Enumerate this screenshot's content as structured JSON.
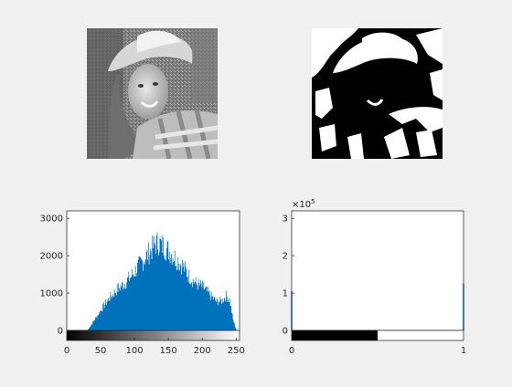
{
  "figure": {
    "background": "#f0f0f0",
    "subplots": [
      {
        "id": "grayscale-image",
        "kind": "image",
        "content": "grayscale portrait photo"
      },
      {
        "id": "binary-image",
        "kind": "image",
        "content": "binarized black-and-white portrait"
      }
    ]
  },
  "chart_data": [
    {
      "type": "bar",
      "id": "grayscale-histogram",
      "bar_color": "#0072bd",
      "xlim": [
        0,
        255
      ],
      "ylim": [
        0,
        3200
      ],
      "xticks": [
        0,
        50,
        100,
        150,
        200,
        250
      ],
      "yticks": [
        0,
        1000,
        2000,
        3000
      ],
      "xtick_labels": [
        "0",
        "50",
        "100",
        "150",
        "200",
        "250"
      ],
      "ytick_labels": [
        "0",
        "1000",
        "2000",
        "3000"
      ],
      "colorbar": "gray",
      "grid": false,
      "envelope_points": [
        [
          0,
          0
        ],
        [
          30,
          0
        ],
        [
          33,
          80
        ],
        [
          38,
          220
        ],
        [
          45,
          420
        ],
        [
          55,
          700
        ],
        [
          65,
          950
        ],
        [
          75,
          1150
        ],
        [
          85,
          1300
        ],
        [
          95,
          1500
        ],
        [
          105,
          1750
        ],
        [
          115,
          2000
        ],
        [
          125,
          2250
        ],
        [
          130,
          2380
        ],
        [
          135,
          2420
        ],
        [
          140,
          2350
        ],
        [
          150,
          2200
        ],
        [
          160,
          2000
        ],
        [
          170,
          1800
        ],
        [
          180,
          1500
        ],
        [
          190,
          1300
        ],
        [
          200,
          1200
        ],
        [
          210,
          1000
        ],
        [
          220,
          800
        ],
        [
          228,
          820
        ],
        [
          235,
          950
        ],
        [
          240,
          850
        ],
        [
          245,
          300
        ],
        [
          250,
          0
        ],
        [
          255,
          0
        ]
      ]
    },
    {
      "type": "bar",
      "id": "binary-histogram",
      "bar_color": "#0072bd",
      "xlim": [
        0,
        1
      ],
      "ylim": [
        0,
        3.2
      ],
      "xticks": [
        0,
        1
      ],
      "yticks": [
        0,
        1,
        2,
        3
      ],
      "xtick_labels": [
        "0",
        "1"
      ],
      "ytick_labels": [
        "0",
        "1",
        "2",
        "3"
      ],
      "exponent_label": "×10",
      "exponent_power": "5",
      "colorbar": "binary",
      "grid": false,
      "values": [
        {
          "x": 0,
          "y": 1.05
        },
        {
          "x": 1,
          "y": 1.25
        }
      ]
    }
  ]
}
